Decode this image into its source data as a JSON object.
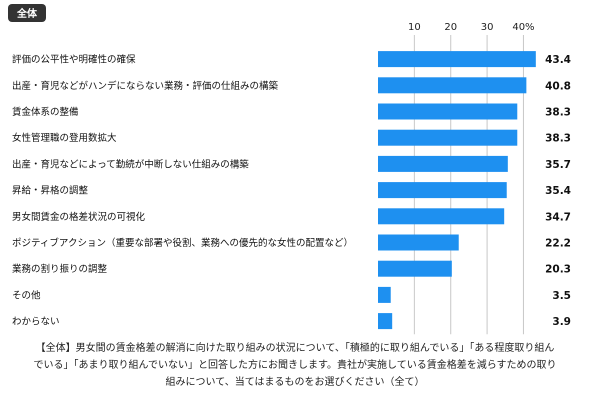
{
  "tag": "全体",
  "colors": {
    "bar": "#1e90f0",
    "tag": "#333333",
    "grid": "#c8c8c8"
  },
  "chart_data": {
    "type": "bar",
    "orientation": "horizontal",
    "xlim": [
      0,
      44
    ],
    "ticks": [
      10,
      20,
      30,
      40
    ],
    "tick_labels": [
      "10",
      "20",
      "30",
      "40%"
    ],
    "grid": true,
    "categories": [
      "評価の公平性や明確性の確保",
      "出産・育児などがハンデにならない業務・評価の仕組みの構築",
      "賃金体系の整備",
      "女性管理職の登用数拡大",
      "出産・育児などによって勤続が中断しない仕組みの構築",
      "昇給・昇格の調整",
      "男女間賃金の格差状況の可視化",
      "ポジティブアクション（重要な部署や役割、業務への優先的な女性の配置など）",
      "業務の割り振りの調整",
      "その他",
      "わからない"
    ],
    "values": [
      43.4,
      40.8,
      38.3,
      38.3,
      35.7,
      35.4,
      34.7,
      22.2,
      20.3,
      3.5,
      3.9
    ],
    "value_labels": [
      "43.4",
      "40.8",
      "38.3",
      "38.3",
      "35.7",
      "35.4",
      "34.7",
      "22.2",
      "20.3",
      "3.5",
      "3.9"
    ]
  },
  "caption": {
    "lines": [
      "【全体】男女間の賃金格差の解消に向けた取り組みの状況について、「積極的に取り組んでいる」「ある程度取り組ん",
      "でいる」「あまり取り組んでいない」と回答した方にお聞きします。貴社が実施している賃金格差を減らすための取り",
      "組みについて、当てはまるものをお選びください（全て）"
    ]
  }
}
